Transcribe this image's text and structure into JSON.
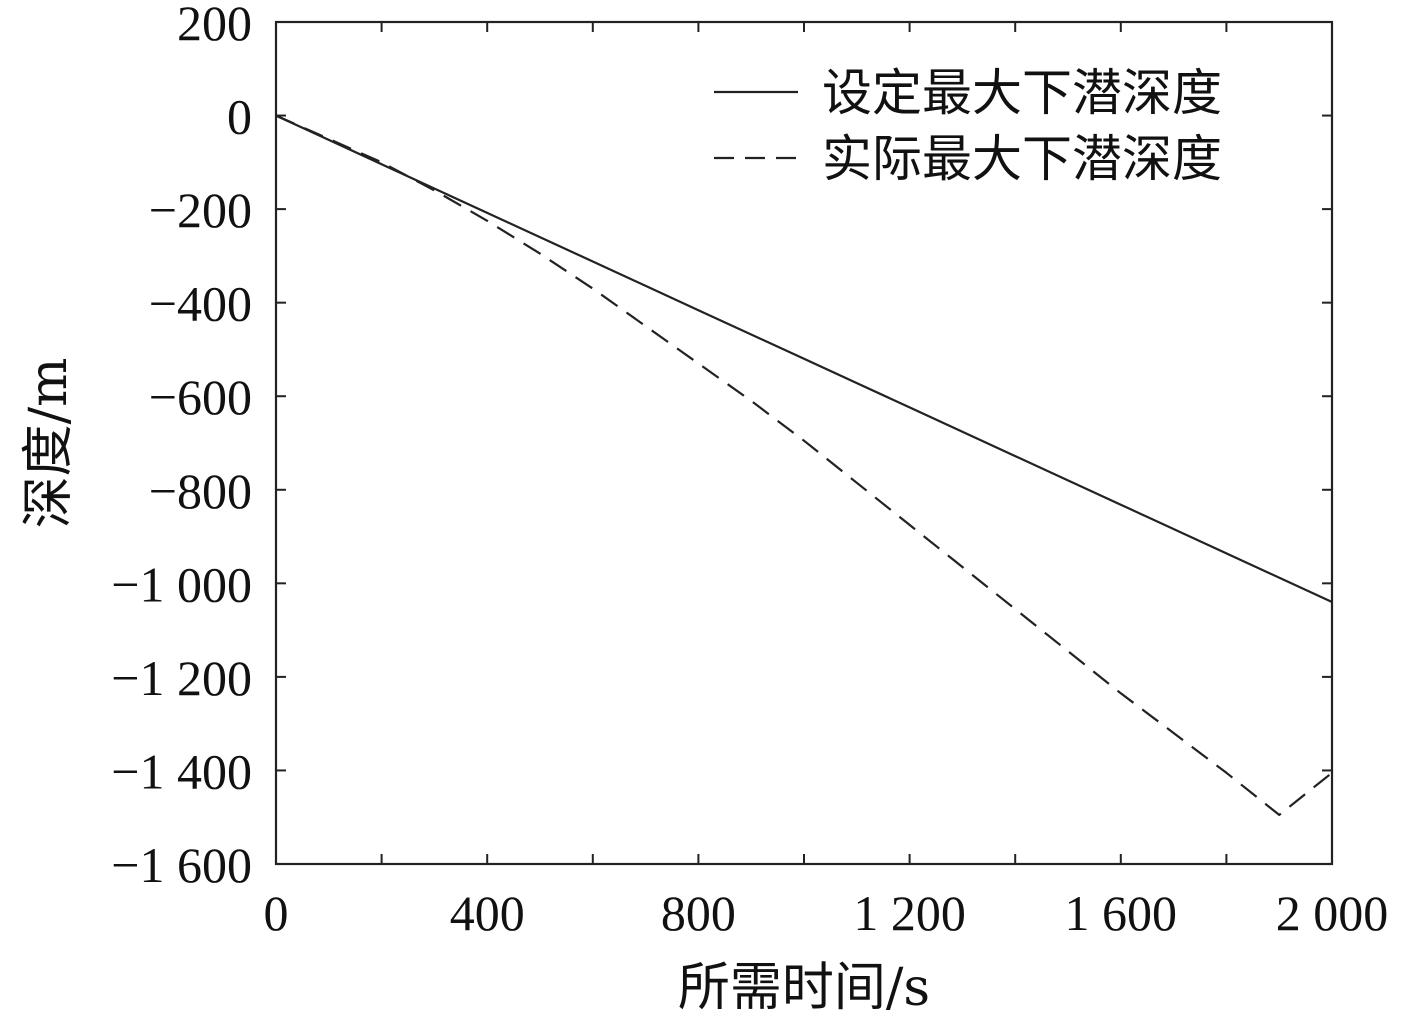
{
  "chart_data": {
    "type": "line",
    "xlabel": "所需时间/s",
    "ylabel": "深度/m",
    "xlim": [
      0,
      2000
    ],
    "ylim": [
      -1600,
      200
    ],
    "x_ticks": [
      0,
      400,
      800,
      1200,
      1600,
      2000
    ],
    "x_tick_labels": [
      "0",
      "400",
      "800",
      "1 200",
      "1 600",
      "2 000"
    ],
    "x_minor_ticks": [
      200,
      600,
      1000,
      1400,
      1800
    ],
    "y_ticks": [
      200,
      0,
      -200,
      -400,
      -600,
      -800,
      -1000,
      -1200,
      -1400,
      -1600
    ],
    "y_tick_labels": [
      "200",
      "0",
      "−200",
      "−400",
      "−600",
      "−800",
      "−1 000",
      "−1 200",
      "−1 400",
      "−1 600"
    ],
    "grid": false,
    "legend_position": "top-right",
    "series": [
      {
        "name": "设定最大下潜深度",
        "style": "solid",
        "color": "#222222",
        "x": [
          0,
          200,
          400,
          600,
          800,
          1000,
          1200,
          1400,
          1600,
          1800,
          2000
        ],
        "y": [
          0,
          -104,
          -208,
          -312,
          -416,
          -520,
          -624,
          -728,
          -832,
          -936,
          -1040
        ]
      },
      {
        "name": "实际最大下潜深度",
        "style": "dashed",
        "color": "#222222",
        "x": [
          0,
          100,
          200,
          300,
          400,
          500,
          600,
          700,
          800,
          900,
          1000,
          1100,
          1200,
          1300,
          1400,
          1500,
          1600,
          1700,
          1800,
          1900,
          2000
        ],
        "y": [
          0,
          -50,
          -100,
          -160,
          -225,
          -295,
          -370,
          -450,
          -530,
          -610,
          -695,
          -785,
          -875,
          -965,
          -1055,
          -1145,
          -1235,
          -1320,
          -1405,
          -1495,
          -1405
        ]
      }
    ]
  }
}
